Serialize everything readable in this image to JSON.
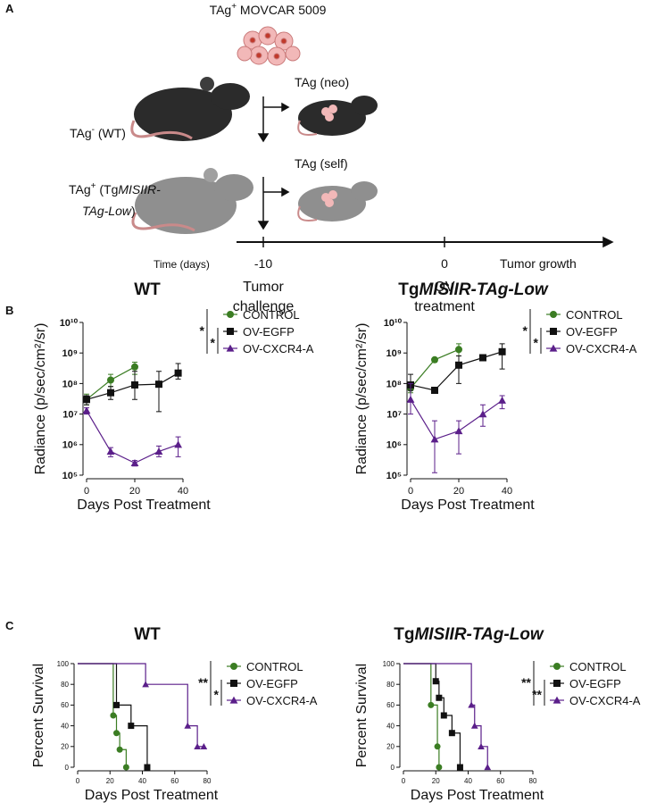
{
  "panel_a": {
    "label": "A",
    "cell_line": {
      "t1": "TAg",
      "sup": "+",
      "t2": " MOVCAR 5009"
    },
    "wt_group": {
      "t1": "TAg",
      "sup": "-",
      "t2": " (WT)"
    },
    "tg_group": {
      "t1": "TAg",
      "sup": "+",
      "t2": " (Tg",
      "it1": "MISIIR-",
      "it2": "TAg-Low",
      "t3": ")"
    },
    "neo": "TAg (neo)",
    "self": "TAg (self)",
    "time_label": "Time (days)",
    "tick_challenge": "-10",
    "tick_treatment": "0",
    "growth": "Tumor growth",
    "challenge1": "Tumor",
    "challenge2": "challenge",
    "treatment1": "OV",
    "treatment2": "treatment"
  },
  "chart_data": [
    {
      "type": "line",
      "panel_label": "B",
      "title_parts": [
        "WT"
      ],
      "ylabel": "Radiance (p/sec/cm²/sr)",
      "xlabel": "Days Post Treatment",
      "log_y": true,
      "xlim": [
        0,
        40
      ],
      "xticks": [
        0,
        20,
        40
      ],
      "ylim": [
        100000,
        10000000000
      ],
      "yticks": [
        {
          "value": 100000,
          "label": "10⁵"
        },
        {
          "value": 1000000,
          "label": "10⁶"
        },
        {
          "value": 10000000,
          "label": "10⁷"
        },
        {
          "value": 100000000,
          "label": "10⁸"
        },
        {
          "value": 1000000000,
          "label": "10⁹"
        },
        {
          "value": 10000000000,
          "label": "10¹⁰"
        }
      ],
      "significance": [
        "*",
        "*"
      ],
      "series": [
        {
          "name": "CONTROL",
          "color": "#3b7d23",
          "marker": "circle",
          "x": [
            0,
            10,
            20
          ],
          "values": [
            30000000,
            130000000,
            350000000
          ],
          "error_low": [
            20000000,
            80000000,
            200000000
          ],
          "error_high": [
            45000000,
            200000000,
            500000000
          ]
        },
        {
          "name": "OV-EGFP",
          "color": "#111111",
          "marker": "square",
          "x": [
            0,
            10,
            20,
            30,
            38
          ],
          "values": [
            30000000,
            50000000,
            90000000,
            95000000,
            220000000
          ],
          "error_low": [
            20000000,
            30000000,
            30000000,
            12000000,
            140000000
          ],
          "error_high": [
            40000000,
            80000000,
            250000000,
            250000000,
            450000000
          ]
        },
        {
          "name": "OV-CXCR4-A",
          "color": "#5b1f8a",
          "marker": "triangle",
          "x": [
            0,
            10,
            20,
            30,
            38
          ],
          "values": [
            13000000,
            600000,
            250000,
            600000,
            1000000
          ],
          "error_low": [
            10000000,
            400000,
            200000,
            400000,
            400000
          ],
          "error_high": [
            16000000,
            800000,
            300000,
            900000,
            1800000
          ]
        }
      ]
    },
    {
      "type": "line",
      "title_parts": [
        "Tg",
        "MISIIR-TAg-Low"
      ],
      "ylabel": "Radiance (p/sec/cm²/sr)",
      "xlabel": "Days Post Treatment",
      "log_y": true,
      "xlim": [
        0,
        40
      ],
      "xticks": [
        0,
        20,
        40
      ],
      "ylim": [
        100000,
        10000000000
      ],
      "yticks": [
        {
          "value": 100000,
          "label": "10⁵"
        },
        {
          "value": 1000000,
          "label": "10⁶"
        },
        {
          "value": 10000000,
          "label": "10⁷"
        },
        {
          "value": 100000000,
          "label": "10⁸"
        },
        {
          "value": 1000000000,
          "label": "10⁹"
        },
        {
          "value": 10000000000,
          "label": "10¹⁰"
        }
      ],
      "significance": [
        "*",
        "*"
      ],
      "series": [
        {
          "name": "CONTROL",
          "color": "#3b7d23",
          "marker": "circle",
          "x": [
            0,
            10,
            20
          ],
          "values": [
            70000000,
            600000000,
            1300000000
          ],
          "error_low": [
            50000000,
            500000000,
            800000000
          ],
          "error_high": [
            100000000,
            700000000,
            2000000000
          ]
        },
        {
          "name": "OV-EGFP",
          "color": "#111111",
          "marker": "square",
          "x": [
            0,
            10,
            20,
            30,
            38
          ],
          "values": [
            90000000,
            60000000,
            400000000,
            700000000,
            1100000000
          ],
          "error_low": [
            60000000,
            50000000,
            100000000,
            600000000,
            300000000
          ],
          "error_high": [
            200000000,
            70000000,
            800000000,
            800000000,
            2000000000
          ]
        },
        {
          "name": "OV-CXCR4-A",
          "color": "#5b1f8a",
          "marker": "triangle",
          "x": [
            0,
            10,
            20,
            30,
            38
          ],
          "values": [
            30000000,
            1500000,
            2800000,
            10000000,
            28000000
          ],
          "error_low": [
            10000000,
            120000,
            500000,
            4000000,
            15000000
          ],
          "error_high": [
            100000000,
            6000000,
            6000000,
            20000000,
            40000000
          ]
        }
      ]
    },
    {
      "type": "step",
      "panel_label": "C",
      "title_parts": [
        "WT"
      ],
      "ylabel": "Percent Survival",
      "xlabel": "Days Post Treatment",
      "xlim": [
        0,
        80
      ],
      "xticks": [
        0,
        20,
        40,
        60,
        80
      ],
      "ylim": [
        0,
        100
      ],
      "yticks": [
        0,
        20,
        40,
        60,
        80,
        100
      ],
      "significance": [
        "**",
        "*"
      ],
      "series": [
        {
          "name": "CONTROL",
          "color": "#3b7d23",
          "marker": "circle",
          "x": [
            0,
            22,
            24,
            26,
            30
          ],
          "values": [
            100,
            50,
            33,
            17,
            0
          ]
        },
        {
          "name": "OV-EGFP",
          "color": "#111111",
          "marker": "square",
          "x": [
            0,
            24,
            33,
            43
          ],
          "values": [
            100,
            60,
            40,
            0
          ]
        },
        {
          "name": "OV-CXCR4-A",
          "color": "#5b1f8a",
          "marker": "triangle",
          "x": [
            0,
            42,
            68,
            74,
            78
          ],
          "values": [
            100,
            80,
            40,
            20,
            20
          ]
        }
      ]
    },
    {
      "type": "step",
      "title_parts": [
        "Tg",
        "MISIIR-TAg-Low"
      ],
      "ylabel": "Percent Survival",
      "xlabel": "Days Post Treatment",
      "xlim": [
        0,
        80
      ],
      "xticks": [
        0,
        20,
        40,
        60,
        80
      ],
      "ylim": [
        0,
        100
      ],
      "yticks": [
        0,
        20,
        40,
        60,
        80,
        100
      ],
      "significance": [
        "**",
        "**"
      ],
      "series": [
        {
          "name": "CONTROL",
          "color": "#3b7d23",
          "marker": "circle",
          "x": [
            0,
            17,
            21,
            22
          ],
          "values": [
            100,
            60,
            20,
            0
          ]
        },
        {
          "name": "OV-EGFP",
          "color": "#111111",
          "marker": "square",
          "x": [
            0,
            20,
            22,
            25,
            30,
            35
          ],
          "values": [
            100,
            83,
            67,
            50,
            33,
            0
          ]
        },
        {
          "name": "OV-CXCR4-A",
          "color": "#5b1f8a",
          "marker": "triangle",
          "x": [
            0,
            42,
            44,
            48,
            52
          ],
          "values": [
            100,
            60,
            40,
            20,
            0
          ]
        }
      ]
    }
  ]
}
